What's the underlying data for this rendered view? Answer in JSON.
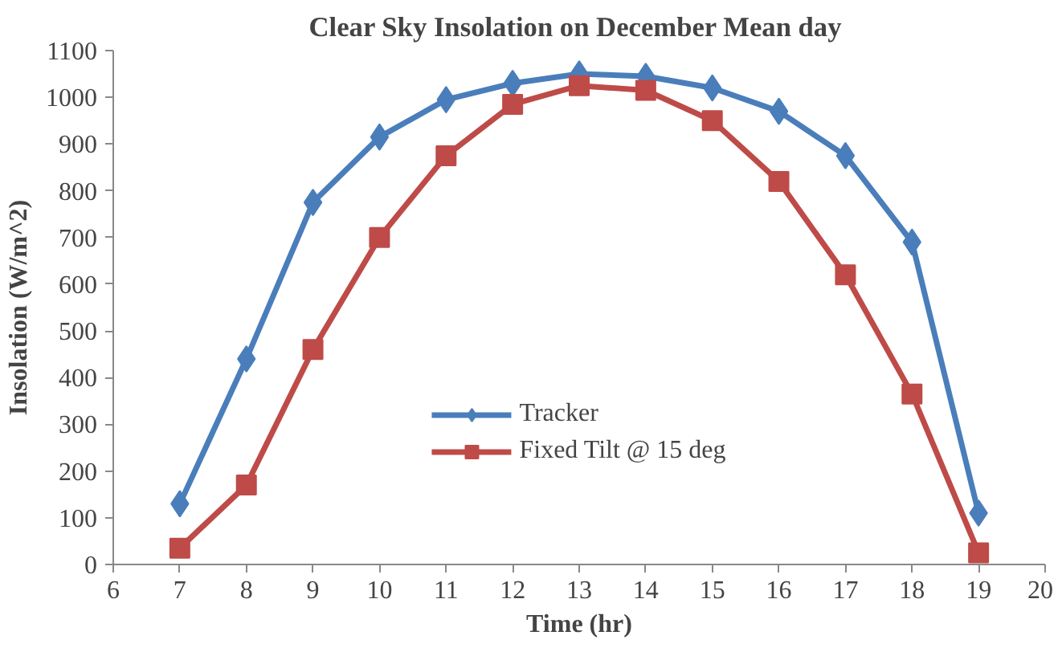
{
  "chart_data": {
    "type": "line",
    "title": "Clear Sky Insolation on December  Mean day",
    "xlabel": "Time (hr)",
    "ylabel": "Insolation (W/m^2)",
    "x": [
      7,
      8,
      9,
      10,
      11,
      12,
      13,
      14,
      15,
      16,
      17,
      18,
      19
    ],
    "series": [
      {
        "name": "Tracker",
        "color": "#4a7ebb",
        "marker": "diamond",
        "values": [
          130,
          440,
          775,
          915,
          995,
          1030,
          1050,
          1045,
          1020,
          970,
          875,
          690,
          110
        ]
      },
      {
        "name": "Fixed Tilt @ 15 deg",
        "color": "#be4b48",
        "marker": "square",
        "values": [
          35,
          170,
          460,
          700,
          875,
          985,
          1025,
          1015,
          950,
          820,
          620,
          365,
          25
        ]
      }
    ],
    "xlim": [
      6,
      20
    ],
    "xticks": [
      6,
      7,
      8,
      9,
      10,
      11,
      12,
      13,
      14,
      15,
      16,
      17,
      18,
      19,
      20
    ],
    "ylim": [
      0,
      1100
    ],
    "yticks": [
      0,
      100,
      200,
      300,
      400,
      500,
      600,
      700,
      800,
      900,
      1000,
      1100
    ],
    "grid": false,
    "legend": "bottom center",
    "line_style": "solid"
  }
}
